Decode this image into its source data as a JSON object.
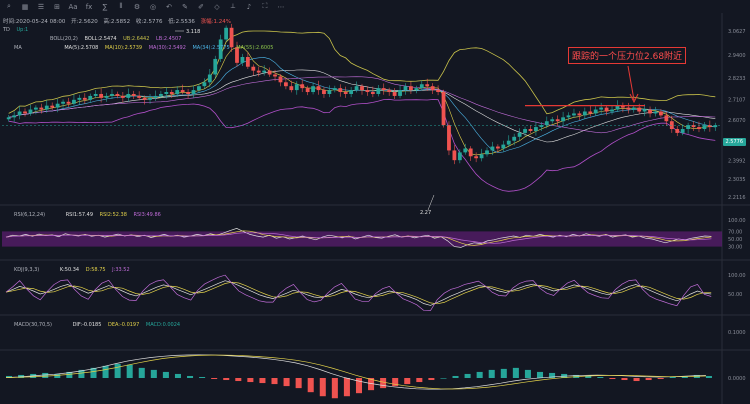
{
  "toolbar": {
    "items": [
      "search-icon",
      "grid-icon",
      "list-icon",
      "layout-icon",
      "text-icon",
      "fx-icon",
      "formula-icon",
      "candles-icon",
      "settings-icon",
      "camera-icon",
      "undo-icon",
      "brush-icon",
      "pen-icon",
      "shape-icon",
      "ruler-icon",
      "sound-icon",
      "fullscreen-icon",
      "more-icon"
    ],
    "labels": [
      "⌕",
      "▦",
      "☰",
      "⊞",
      "Aa",
      "fx",
      "∑",
      "⫴",
      "⚙",
      "◎",
      "↶",
      "✎",
      "✐",
      "◇",
      "⟂",
      "♪",
      "⛶",
      "⋯"
    ]
  },
  "ohlc": {
    "time": "时间:2020-05-24 08:00",
    "open": "开:2.5620",
    "high": "高:2.5852",
    "close": "收:2.5776",
    "low": "低:2.5536",
    "change": "涨幅:1.24%"
  },
  "indicator_labels": {
    "td": [
      "TD",
      "Up:1"
    ],
    "boll": [
      "BOLL(20,2)",
      "BOLL:2.5474",
      "UB:2.6442",
      "LB:2.4507"
    ],
    "ma": [
      "MA",
      "MA(5):2.5708",
      "MA(10):2.5739",
      "MA(30):2.5492",
      "MA(34):2.5775",
      "MA(55):2.6005"
    ],
    "rsi": [
      "RSI(6,12,24)",
      "RSI1:57.49",
      "RSI2:52.38",
      "RSI3:49.86"
    ],
    "kdj": [
      "KDJ(9,3,3)",
      "K:50.34",
      "D:58.75",
      "J:33.52"
    ],
    "macd": [
      "MACD(30,70,5)",
      "DIF:-0.0185",
      "DEA:-0.0197",
      "MACD:0.0024"
    ]
  },
  "annotation": "跟踪的一个压力位2.68附近",
  "top_marker": "3.118",
  "bottom_marker": "2.27",
  "last_price": "2.5776",
  "colors": {
    "up": "#26a69a",
    "down": "#ef5350",
    "boll": "#c9c24a",
    "anno": "#e53935"
  },
  "chart_data": {
    "type": "candlestick",
    "price_axis": {
      "ticks": [
        "3.0627",
        "2.9400",
        "2.8233",
        "2.7107",
        "2.6070",
        "2.4988",
        "2.3992",
        "2.3035",
        "2.2116"
      ],
      "range": [
        2.18,
        3.12
      ]
    },
    "rsi_axis": {
      "ticks": [
        "100.00",
        "70.00",
        "50.00",
        "30.00"
      ]
    },
    "kdj_axis": {
      "ticks": [
        "100.00",
        "50.00"
      ]
    },
    "macd_axis": {
      "ticks": [
        "0.1000",
        "0.0000"
      ]
    },
    "close": [
      2.62,
      2.63,
      2.65,
      2.64,
      2.66,
      2.67,
      2.66,
      2.68,
      2.67,
      2.69,
      2.7,
      2.69,
      2.71,
      2.72,
      2.71,
      2.73,
      2.74,
      2.72,
      2.73,
      2.74,
      2.73,
      2.72,
      2.74,
      2.73,
      2.72,
      2.71,
      2.72,
      2.73,
      2.74,
      2.75,
      2.74,
      2.76,
      2.75,
      2.74,
      2.76,
      2.78,
      2.8,
      2.84,
      2.92,
      3.02,
      3.08,
      2.98,
      2.9,
      2.93,
      2.88,
      2.86,
      2.85,
      2.86,
      2.84,
      2.83,
      2.8,
      2.78,
      2.76,
      2.79,
      2.77,
      2.75,
      2.78,
      2.76,
      2.74,
      2.76,
      2.77,
      2.75,
      2.74,
      2.76,
      2.78,
      2.76,
      2.75,
      2.74,
      2.77,
      2.76,
      2.75,
      2.73,
      2.76,
      2.78,
      2.76,
      2.77,
      2.79,
      2.78,
      2.76,
      2.75,
      2.58,
      2.45,
      2.4,
      2.44,
      2.46,
      2.42,
      2.41,
      2.43,
      2.45,
      2.47,
      2.46,
      2.48,
      2.5,
      2.52,
      2.54,
      2.56,
      2.55,
      2.57,
      2.58,
      2.6,
      2.61,
      2.6,
      2.62,
      2.63,
      2.64,
      2.63,
      2.65,
      2.64,
      2.66,
      2.67,
      2.65,
      2.66,
      2.68,
      2.67,
      2.66,
      2.67,
      2.65,
      2.66,
      2.64,
      2.65,
      2.63,
      2.6,
      2.56,
      2.54,
      2.56,
      2.58,
      2.57,
      2.56,
      2.58,
      2.57,
      2.58
    ],
    "rsi1": [
      55,
      60,
      58,
      62,
      57,
      63,
      59,
      61,
      56,
      64,
      60,
      58,
      62,
      57,
      60,
      55,
      59,
      63,
      58,
      61,
      56,
      60,
      54,
      58,
      62,
      57,
      60,
      55,
      58,
      62,
      59,
      64,
      60,
      66,
      72,
      78,
      70,
      62,
      58,
      55,
      60,
      52,
      56,
      50,
      54,
      58,
      52,
      48,
      55,
      60,
      57,
      53,
      58,
      50,
      55,
      60,
      54,
      52,
      57,
      61,
      55,
      58,
      53,
      57,
      60,
      52,
      56,
      45,
      30,
      28,
      35,
      40,
      38,
      45,
      48,
      52,
      55,
      58,
      54,
      60,
      57,
      62,
      58,
      55,
      60,
      56,
      62,
      58,
      64,
      60,
      57,
      62,
      55,
      59,
      61,
      55,
      58,
      52,
      50,
      45,
      40,
      45,
      50,
      48,
      52,
      55,
      58,
      57
    ],
    "k": [
      55,
      62,
      70,
      65,
      58,
      50,
      55,
      62,
      70,
      75,
      68,
      60,
      52,
      58,
      65,
      72,
      66,
      58,
      50,
      45,
      52,
      60,
      68,
      74,
      70,
      62,
      55,
      48,
      55,
      62,
      70,
      78,
      85,
      80,
      72,
      64,
      56,
      48,
      42,
      38,
      45,
      52,
      60,
      55,
      48,
      42,
      40,
      46,
      54,
      62,
      58,
      50,
      44,
      40,
      46,
      52,
      58,
      54,
      48,
      42,
      35,
      25,
      20,
      28,
      36,
      45,
      52,
      60,
      66,
      72,
      70,
      64,
      58,
      54,
      60,
      66,
      72,
      76,
      70,
      64,
      58,
      62,
      68,
      74,
      70,
      64,
      58,
      52,
      48,
      55,
      62,
      70,
      75,
      68,
      60,
      52,
      45,
      38,
      32,
      40,
      50,
      58,
      52,
      50
    ],
    "macd_hist": [
      0.002,
      0.003,
      0.004,
      0.005,
      0.004,
      0.006,
      0.008,
      0.01,
      0.012,
      0.014,
      0.013,
      0.01,
      0.008,
      0.006,
      0.004,
      0.002,
      0.001,
      -0.001,
      -0.002,
      -0.003,
      -0.004,
      -0.005,
      -0.006,
      -0.008,
      -0.01,
      -0.014,
      -0.018,
      -0.02,
      -0.018,
      -0.015,
      -0.012,
      -0.01,
      -0.008,
      -0.006,
      -0.004,
      -0.002,
      0.0,
      0.002,
      0.004,
      0.006,
      0.008,
      0.009,
      0.01,
      0.008,
      0.006,
      0.005,
      0.004,
      0.003,
      0.002,
      0.001,
      -0.001,
      -0.002,
      -0.003,
      -0.002,
      -0.001,
      0.001,
      0.002,
      0.003,
      0.002
    ]
  }
}
